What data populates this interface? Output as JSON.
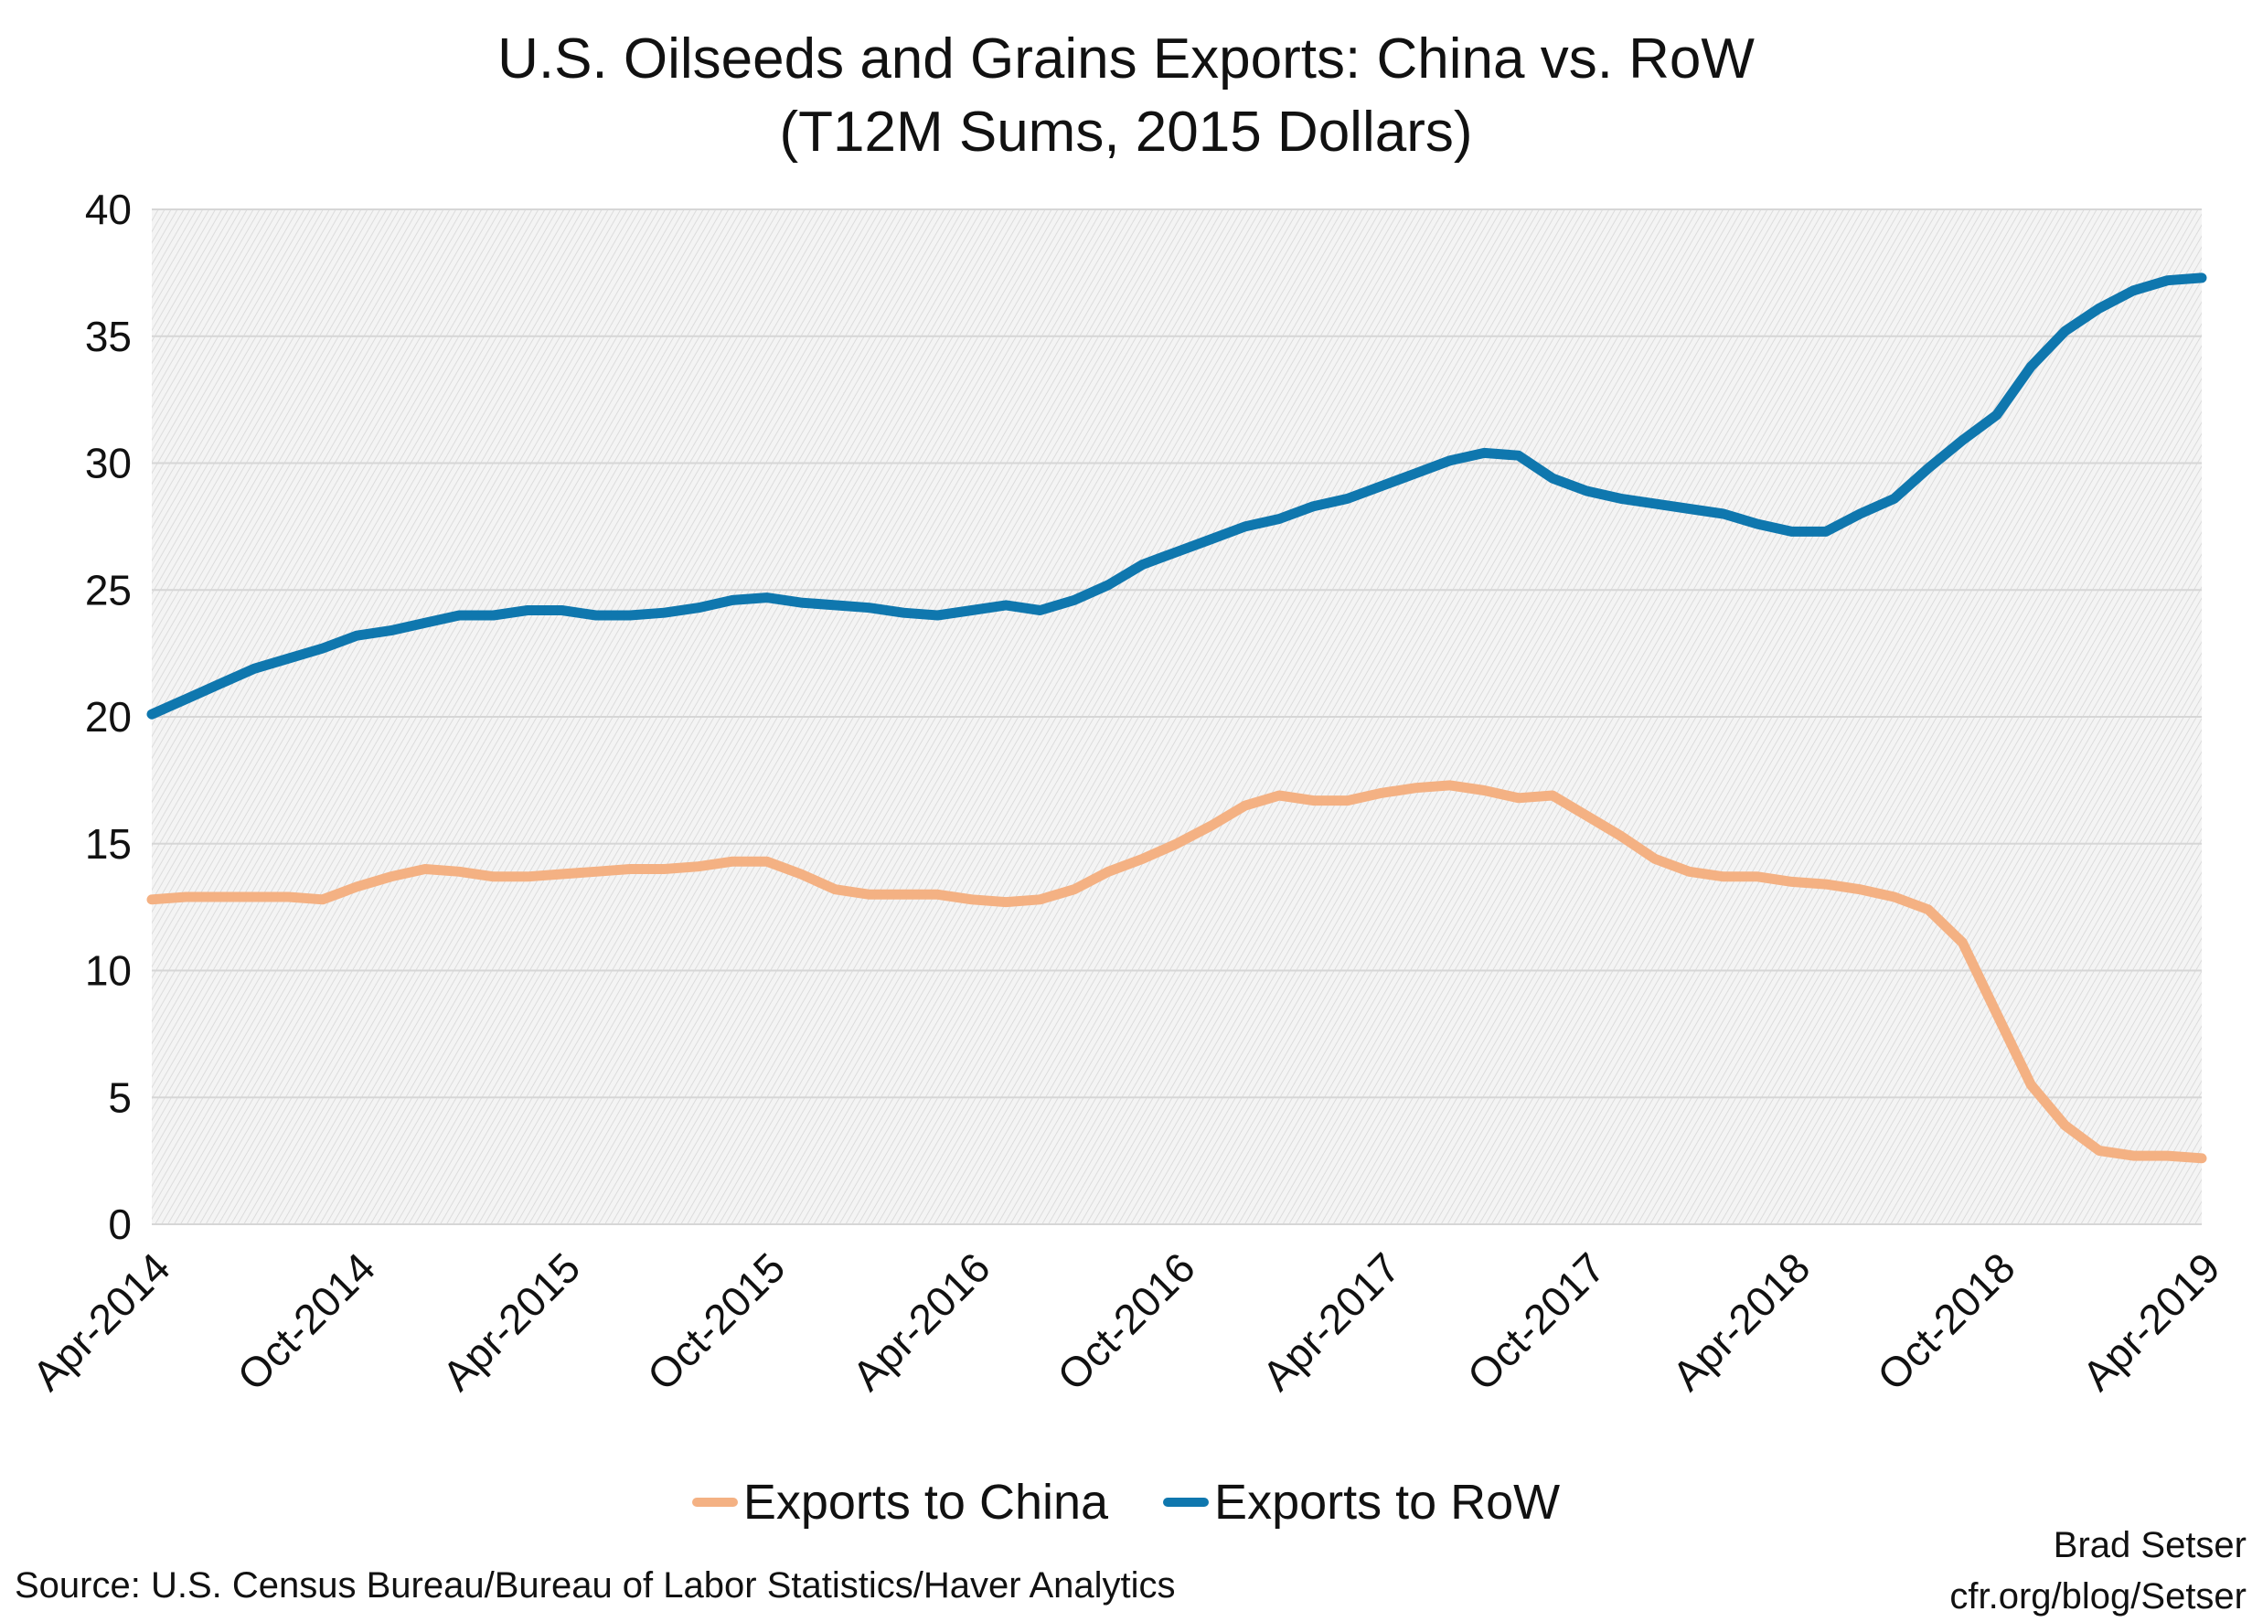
{
  "chart_data": {
    "type": "line",
    "title": "U.S. Oilseeds and Grains Exports: China vs. RoW",
    "subtitle": "(T12M Sums, 2015 Dollars)",
    "x_start": "Apr-2014",
    "x_end": "Apr-2019",
    "x_frequency": "monthly",
    "xtick_labels": [
      "Apr-2014",
      "Oct-2014",
      "Apr-2015",
      "Oct-2015",
      "Apr-2016",
      "Oct-2016",
      "Apr-2017",
      "Oct-2017",
      "Apr-2018",
      "Oct-2018",
      "Apr-2019"
    ],
    "ylim": [
      0,
      40
    ],
    "yticks": [
      0,
      5,
      10,
      15,
      20,
      25,
      30,
      35,
      40
    ],
    "grid": true,
    "legend_position": "bottom",
    "series": [
      {
        "name": "Exports to China",
        "color": "#f4b183",
        "values": [
          12.8,
          12.9,
          12.9,
          12.9,
          12.9,
          12.8,
          13.3,
          13.7,
          14.0,
          13.9,
          13.7,
          13.7,
          13.8,
          13.9,
          14.0,
          14.0,
          14.1,
          14.3,
          14.3,
          13.8,
          13.2,
          13.0,
          13.0,
          13.0,
          12.8,
          12.7,
          12.8,
          13.2,
          13.9,
          14.4,
          15.0,
          15.7,
          16.5,
          16.9,
          16.7,
          16.7,
          17.0,
          17.2,
          17.3,
          17.1,
          16.8,
          16.9,
          16.1,
          15.3,
          14.4,
          13.9,
          13.7,
          13.7,
          13.5,
          13.4,
          13.2,
          12.9,
          12.4,
          11.1,
          8.3,
          5.5,
          3.9,
          2.9,
          2.7,
          2.7,
          2.6
        ]
      },
      {
        "name": "Exports to RoW",
        "color": "#0f77ae",
        "values": [
          20.1,
          20.7,
          21.3,
          21.9,
          22.3,
          22.7,
          23.2,
          23.4,
          23.7,
          24.0,
          24.0,
          24.2,
          24.2,
          24.0,
          24.0,
          24.1,
          24.3,
          24.6,
          24.7,
          24.5,
          24.4,
          24.3,
          24.1,
          24.0,
          24.2,
          24.4,
          24.2,
          24.6,
          25.2,
          26.0,
          26.5,
          27.0,
          27.5,
          27.8,
          28.3,
          28.6,
          29.1,
          29.6,
          30.1,
          30.4,
          30.3,
          29.4,
          28.9,
          28.6,
          28.4,
          28.2,
          28.0,
          27.6,
          27.3,
          27.3,
          28.0,
          28.6,
          29.8,
          30.9,
          31.9,
          33.8,
          35.2,
          36.1,
          36.8,
          37.2,
          37.3
        ]
      }
    ]
  },
  "source": "Source: U.S. Census Bureau/Bureau of Labor Statistics/Haver Analytics",
  "credit": {
    "author": "Brad Setser",
    "url": "cfr.org/blog/Setser"
  }
}
